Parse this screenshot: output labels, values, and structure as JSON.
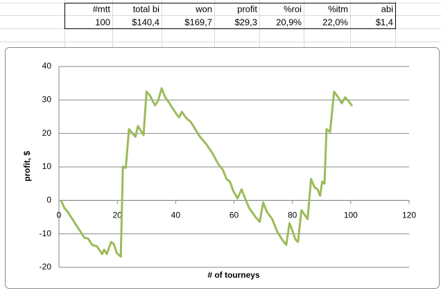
{
  "table": {
    "header": [
      "#mtt",
      "total bi",
      "won",
      "profit",
      "%roi",
      "%itm",
      "abi"
    ],
    "rows": [
      [
        "100",
        "$140,4",
        "$169,7",
        "$29,3",
        "20,9%",
        "22,0%",
        "$1,4"
      ]
    ]
  },
  "chart_data": {
    "type": "line",
    "x_label": "# of tourneys",
    "y_label": "profit, $",
    "color": "#9bbb59",
    "grid": true,
    "x": [
      0.7,
      1.9,
      3.1,
      5.5,
      7.9,
      8.8,
      10,
      11.4,
      13,
      14.8,
      15.5,
      16.4,
      17.9,
      18.8,
      19.8,
      21.2,
      21.9,
      22.9,
      24,
      26.2,
      27.1,
      29,
      30,
      31.2,
      32.9,
      34,
      35.2,
      36.4,
      37.6,
      38.8,
      40.2,
      41.2,
      42.1,
      43.6,
      45.2,
      46.7,
      48.1,
      50.5,
      52.6,
      54.5,
      56.2,
      57.4,
      58.6,
      59.8,
      61.2,
      62.6,
      63.8,
      65.2,
      67.4,
      68.8,
      70,
      71.2,
      73.1,
      74.8,
      76.4,
      77.9,
      79,
      79.8,
      81,
      81.9,
      83.1,
      85.2,
      86.4,
      87.6,
      88.6,
      89.5,
      90.2,
      91,
      91.7,
      92.9,
      94.3,
      95.7,
      96.9,
      98.1,
      99.3,
      100.5
    ],
    "values": [
      0,
      -2.3,
      -3.5,
      -6.8,
      -10,
      -11.2,
      -11.4,
      -13.3,
      -13.7,
      -16,
      -14.7,
      -16,
      -12.4,
      -13,
      -15.7,
      -16.8,
      10.1,
      9.7,
      21.3,
      19,
      22.2,
      19.5,
      32.5,
      31.3,
      28.4,
      29.8,
      33.5,
      30.8,
      29.4,
      27.7,
      25.9,
      24.8,
      26.5,
      24.6,
      23.4,
      21.3,
      19.3,
      16.8,
      14.1,
      11,
      9.1,
      6.4,
      5.6,
      2.7,
      0.6,
      3.3,
      0.6,
      -2.3,
      -5,
      -6.4,
      -0.6,
      -3.3,
      -5.6,
      -9.3,
      -11.6,
      -13.3,
      -6.8,
      -8.5,
      -11.6,
      -12.4,
      -2.9,
      -5.6,
      6.4,
      3.9,
      3.3,
      1.4,
      5.6,
      5,
      21.3,
      20.5,
      32.5,
      30.8,
      29,
      30.8,
      29.6,
      28.2
    ],
    "xlim": [
      0,
      120
    ],
    "xticks": [
      0,
      20,
      40,
      60,
      80,
      100,
      120
    ],
    "ylim": [
      -20,
      40
    ],
    "yticks": [
      -20,
      -10,
      0,
      10,
      20,
      30,
      40
    ]
  }
}
